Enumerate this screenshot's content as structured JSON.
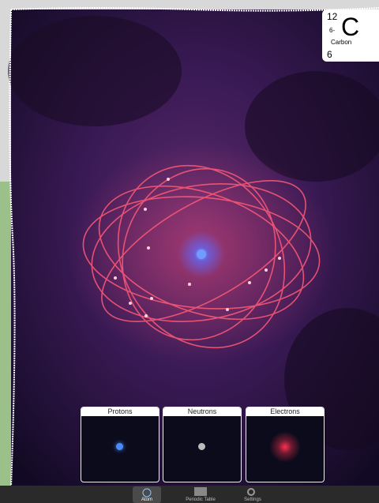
{
  "element_card": {
    "mass_number": 12,
    "charge": "6-",
    "symbol": "C",
    "name": "Carbon",
    "atomic_number": 6
  },
  "panels": [
    {
      "title": "Protons"
    },
    {
      "title": "Neutrons"
    },
    {
      "title": "Electrons"
    }
  ],
  "tab_bar": {
    "tabs": [
      {
        "label": "Atom"
      },
      {
        "label": "Periodic Table"
      },
      {
        "label": "Settings"
      }
    ]
  }
}
